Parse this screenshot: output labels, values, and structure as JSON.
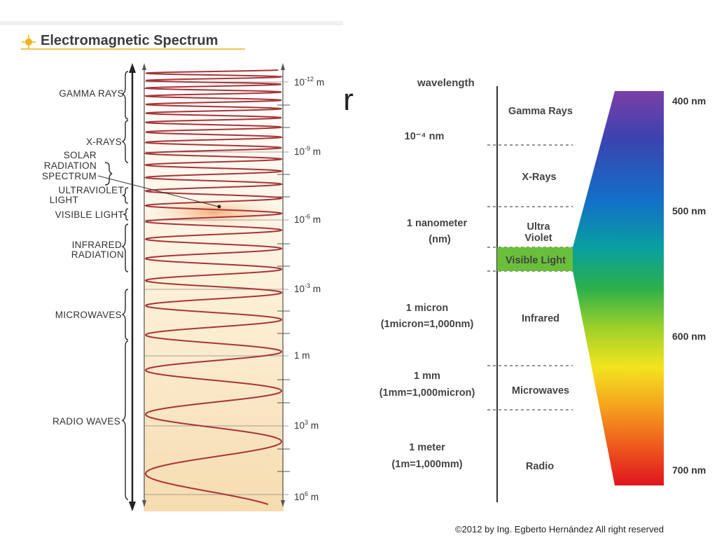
{
  "slide_title_fragment": "tr",
  "left_diagram": {
    "title": "Electromagnetic Spectrum",
    "bands": [
      "GAMMA RAYS",
      "X-RAYS",
      "SOLAR",
      "RADIATION",
      "SPECTRUM",
      "ULTRAVIOLET",
      "LIGHT",
      "VISIBLE LIGHT",
      "INFRARED",
      "RADIATION",
      "MICROWAVES",
      "RADIO WAVES"
    ],
    "wavelengths": [
      {
        "base": "10",
        "exp": "-12",
        "unit": "m"
      },
      {
        "base": "10",
        "exp": "-9",
        "unit": "m"
      },
      {
        "base": "10",
        "exp": "-6",
        "unit": "m"
      },
      {
        "base": "10",
        "exp": "-3",
        "unit": "m"
      },
      {
        "base": "1",
        "exp": "",
        "unit": "m"
      },
      {
        "base": "10",
        "exp": "3",
        "unit": "m"
      },
      {
        "base": "10",
        "exp": "6",
        "unit": "m"
      }
    ]
  },
  "right_diagram": {
    "header": "wavelength",
    "scale_labels": [
      [
        "10⁻⁴ nm"
      ],
      [
        "1 nanometer",
        "(nm)"
      ],
      [
        "1 micron",
        "(1micron=1,000nm)"
      ],
      [
        "1 mm",
        "(1mm=1,000micron)"
      ],
      [
        "1 meter",
        "(1m=1,000mm)"
      ]
    ],
    "regions": [
      [
        "Gamma Rays"
      ],
      [
        "X-Rays"
      ],
      [
        "Ultra",
        "Violet"
      ],
      [
        "Visible Light"
      ],
      [
        "Infrared"
      ],
      [
        "Microwaves"
      ],
      [
        "Radio"
      ]
    ],
    "visible_nm": [
      "400 nm",
      "500 nm",
      "600 nm",
      "700 nm"
    ],
    "colors": {
      "visible_band": "#6abf3a",
      "wave": "#a8343a",
      "axis": "#333333"
    }
  },
  "footer": {
    "copyright": "©2012 by Ing. Egberto Hernández All right reserved"
  }
}
